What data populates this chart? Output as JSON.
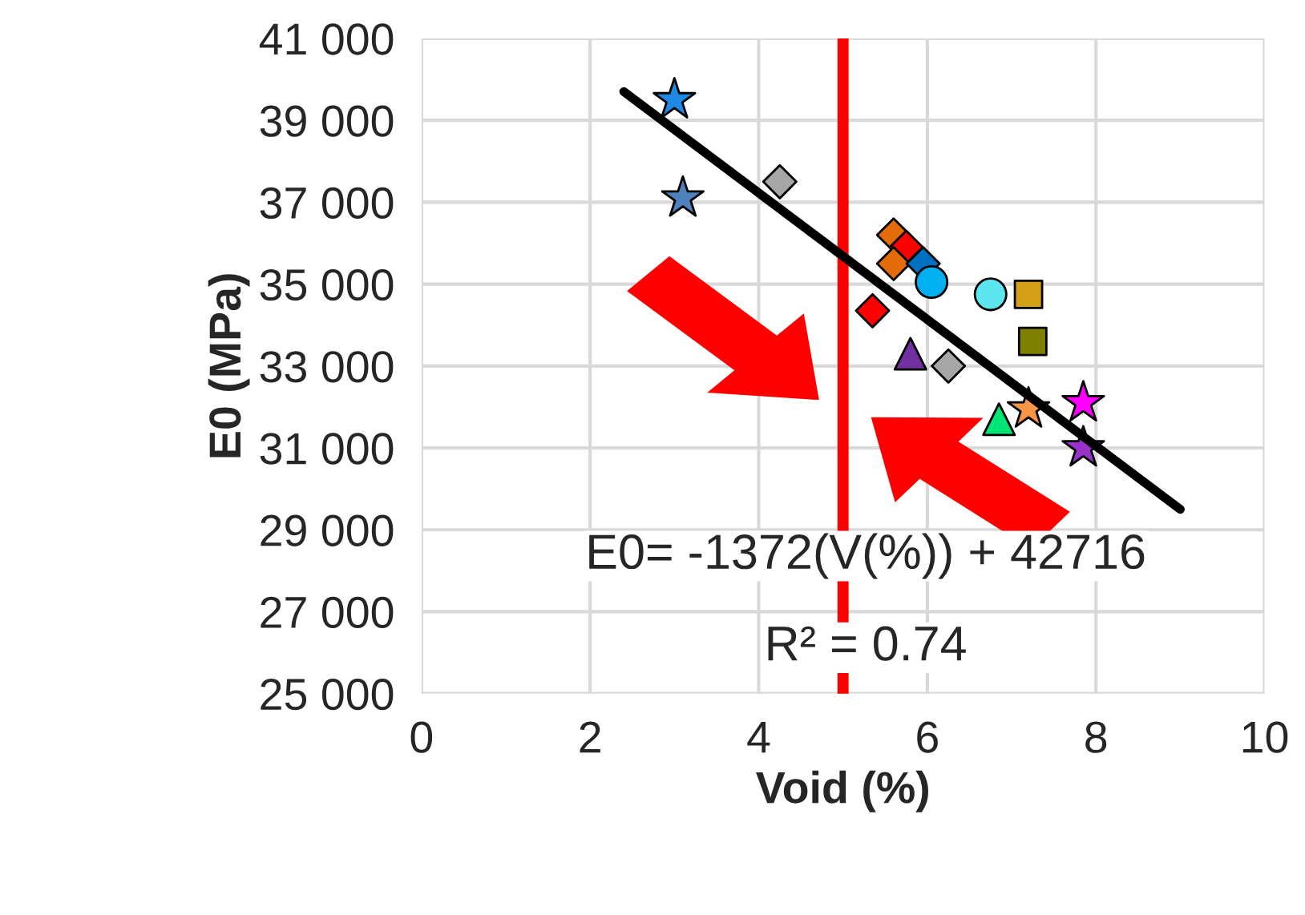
{
  "chart_data": {
    "type": "scatter",
    "xlabel": "Void (%)",
    "ylabel": "E0 (MPa)",
    "xlim": [
      0,
      10
    ],
    "xticks": [
      0,
      2,
      4,
      6,
      8,
      10
    ],
    "ylim": [
      25000,
      41000
    ],
    "yticks": [
      {
        "value": 25000,
        "label": "25 000"
      },
      {
        "value": 27000,
        "label": "27 000"
      },
      {
        "value": 29000,
        "label": "29 000"
      },
      {
        "value": 31000,
        "label": "31 000"
      },
      {
        "value": 33000,
        "label": "33 000"
      },
      {
        "value": 35000,
        "label": "35 000"
      },
      {
        "value": 37000,
        "label": "37 000"
      },
      {
        "value": 39000,
        "label": "39 000"
      },
      {
        "value": 41000,
        "label": "41 000"
      }
    ],
    "grid": true,
    "series": [
      {
        "type": "line",
        "color": "#000000",
        "x": [
          2.4,
          9.0
        ],
        "values": [
          39700,
          29500
        ]
      },
      {
        "marker": "star",
        "x": [
          3.0,
          3.1,
          7.2,
          7.85,
          7.85
        ],
        "values": [
          39500,
          37100,
          31950,
          32100,
          31000
        ],
        "colors": [
          "#1e88e5",
          "#4f81bd",
          "#f79646",
          "#ff00ff",
          "#9933cc"
        ]
      },
      {
        "marker": "diamond",
        "x": [
          4.25,
          5.6,
          5.75,
          5.6,
          5.95,
          5.35,
          6.25
        ],
        "values": [
          37500,
          36200,
          35900,
          35500,
          35500,
          34350,
          33000
        ],
        "colors": [
          "#a6a6a6",
          "#e36c09",
          "#ff0000",
          "#e36c09",
          "#0070c0",
          "#ff0000",
          "#a6a6a6"
        ]
      },
      {
        "marker": "circle",
        "x": [
          6.05,
          6.75
        ],
        "values": [
          35050,
          34750
        ],
        "colors": [
          "#00b0f0",
          "#5ce6f0"
        ]
      },
      {
        "marker": "square",
        "x": [
          7.2,
          7.25
        ],
        "values": [
          34750,
          33600
        ],
        "colors": [
          "#d4a017",
          "#808000"
        ]
      },
      {
        "marker": "triangle",
        "x": [
          5.8,
          6.85
        ],
        "values": [
          33300,
          31700
        ],
        "colors": [
          "#7030a0",
          "#00e676"
        ]
      }
    ],
    "ref_lines": [
      {
        "axis": "x",
        "value": 5,
        "color": "#ff0000"
      }
    ],
    "annotations": [
      "E0= -1372(V(%)) + 42716",
      "R² = 0.74"
    ]
  }
}
